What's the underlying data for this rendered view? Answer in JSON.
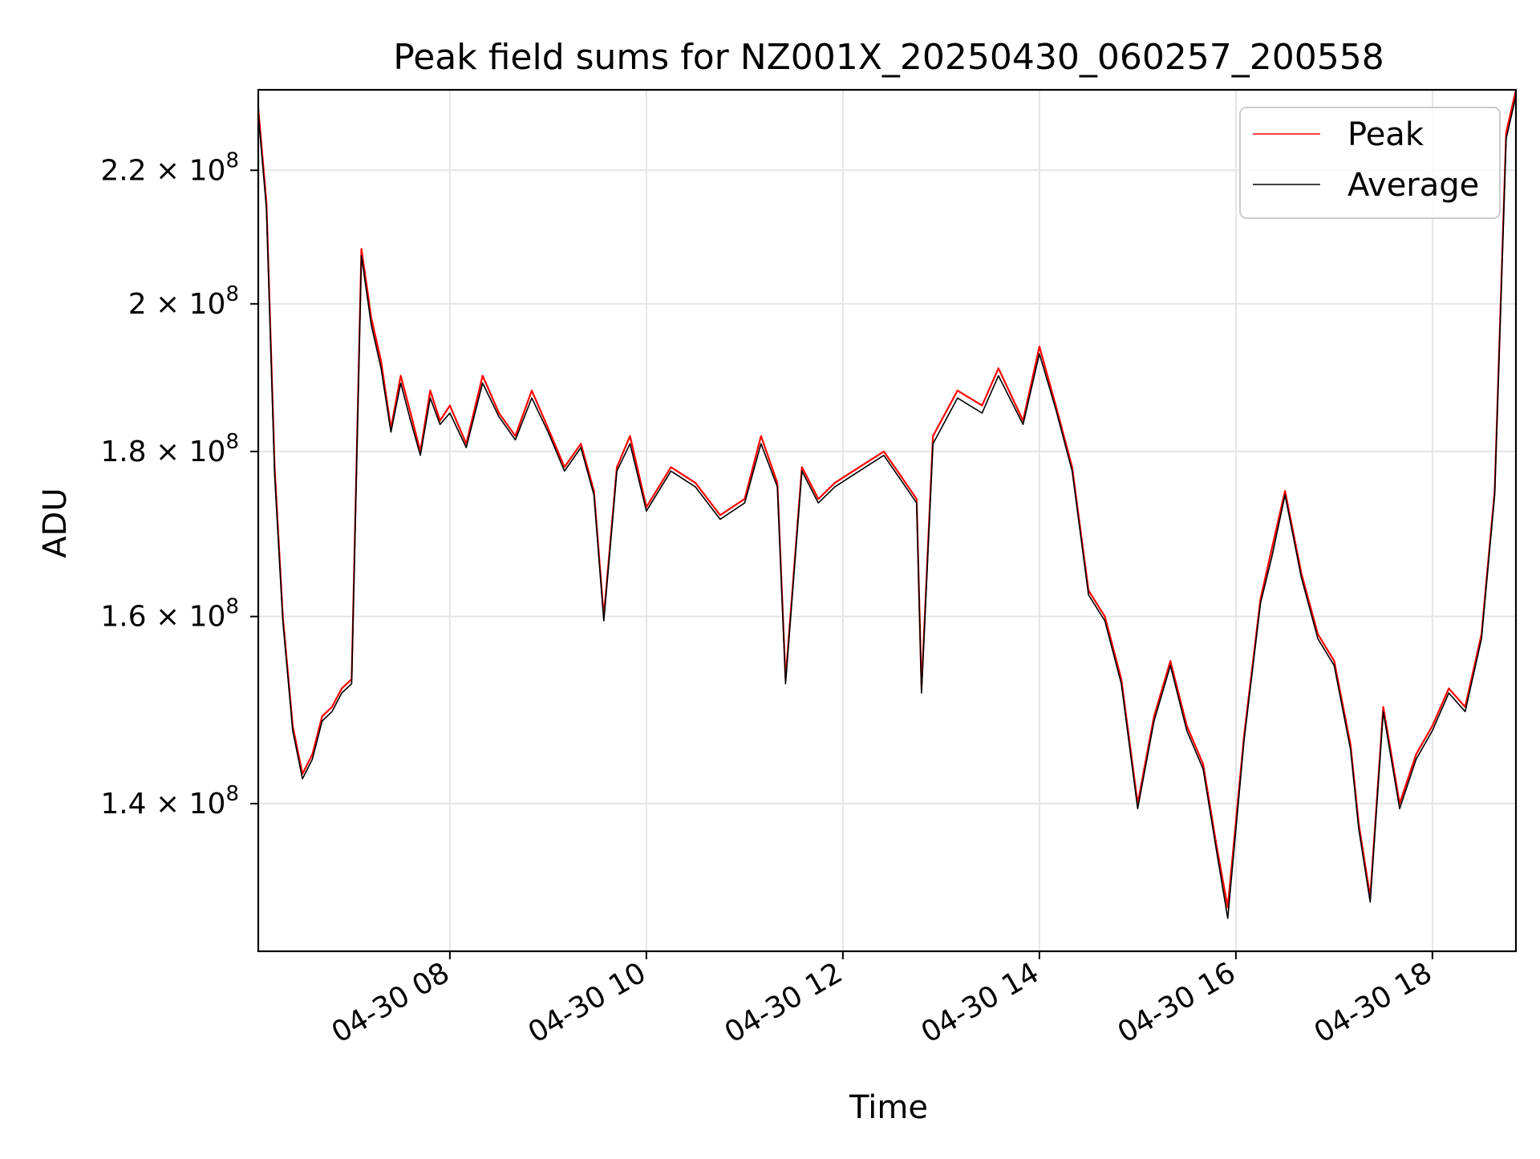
{
  "chart_data": {
    "type": "line",
    "title": "Peak field sums for NZ001X_20250430_060257_200558",
    "xlabel": "Time",
    "ylabel": "ADU",
    "y_scale": "log",
    "xlim": [
      "2025-04-30 06:03",
      "2025-04-30 18:51"
    ],
    "ylim": [
      126000000,
      233000000
    ],
    "x_ticks": [
      {
        "label": "04-30 08",
        "value": "2025-04-30 08:00"
      },
      {
        "label": "04-30 10",
        "value": "2025-04-30 10:00"
      },
      {
        "label": "04-30 12",
        "value": "2025-04-30 12:00"
      },
      {
        "label": "04-30 14",
        "value": "2025-04-30 14:00"
      },
      {
        "label": "04-30 16",
        "value": "2025-04-30 16:00"
      },
      {
        "label": "04-30 18",
        "value": "2025-04-30 18:00"
      }
    ],
    "y_ticks": [
      {
        "mantissa": "1.4",
        "exponent": "8",
        "value": 140000000
      },
      {
        "mantissa": "1.6",
        "exponent": "8",
        "value": 160000000
      },
      {
        "mantissa": "1.8",
        "exponent": "8",
        "value": 180000000
      },
      {
        "mantissa": "2",
        "exponent": "8",
        "value": 200000000
      },
      {
        "mantissa": "2.2",
        "exponent": "8",
        "value": 220000000
      }
    ],
    "grid": true,
    "legend_position": "upper-right",
    "series": [
      {
        "name": "Peak",
        "color": "#ff0000",
        "x": [
          "2025-04-30 06:03",
          "2025-04-30 06:08",
          "2025-04-30 06:13",
          "2025-04-30 06:18",
          "2025-04-30 06:24",
          "2025-04-30 06:30",
          "2025-04-30 06:36",
          "2025-04-30 06:42",
          "2025-04-30 06:48",
          "2025-04-30 06:54",
          "2025-04-30 07:00",
          "2025-04-30 07:06",
          "2025-04-30 07:12",
          "2025-04-30 07:18",
          "2025-04-30 07:24",
          "2025-04-30 07:30",
          "2025-04-30 07:36",
          "2025-04-30 07:42",
          "2025-04-30 07:48",
          "2025-04-30 07:54",
          "2025-04-30 08:00",
          "2025-04-30 08:10",
          "2025-04-30 08:20",
          "2025-04-30 08:30",
          "2025-04-30 08:40",
          "2025-04-30 08:50",
          "2025-04-30 09:00",
          "2025-04-30 09:10",
          "2025-04-30 09:20",
          "2025-04-30 09:28",
          "2025-04-30 09:34",
          "2025-04-30 09:42",
          "2025-04-30 09:50",
          "2025-04-30 10:00",
          "2025-04-30 10:15",
          "2025-04-30 10:30",
          "2025-04-30 10:45",
          "2025-04-30 11:00",
          "2025-04-30 11:10",
          "2025-04-30 11:20",
          "2025-04-30 11:25",
          "2025-04-30 11:35",
          "2025-04-30 11:45",
          "2025-04-30 11:55",
          "2025-04-30 12:10",
          "2025-04-30 12:25",
          "2025-04-30 12:35",
          "2025-04-30 12:45",
          "2025-04-30 12:48",
          "2025-04-30 12:55",
          "2025-04-30 13:10",
          "2025-04-30 13:25",
          "2025-04-30 13:35",
          "2025-04-30 13:50",
          "2025-04-30 14:00",
          "2025-04-30 14:10",
          "2025-04-30 14:20",
          "2025-04-30 14:30",
          "2025-04-30 14:40",
          "2025-04-30 14:50",
          "2025-04-30 15:00",
          "2025-04-30 15:10",
          "2025-04-30 15:20",
          "2025-04-30 15:30",
          "2025-04-30 15:40",
          "2025-04-30 15:48",
          "2025-04-30 15:55",
          "2025-04-30 16:05",
          "2025-04-30 16:15",
          "2025-04-30 16:22",
          "2025-04-30 16:30",
          "2025-04-30 16:40",
          "2025-04-30 16:50",
          "2025-04-30 17:00",
          "2025-04-30 17:10",
          "2025-04-30 17:15",
          "2025-04-30 17:22",
          "2025-04-30 17:30",
          "2025-04-30 17:40",
          "2025-04-30 17:50",
          "2025-04-30 18:00",
          "2025-04-30 18:10",
          "2025-04-30 18:20",
          "2025-04-30 18:30",
          "2025-04-30 18:38",
          "2025-04-30 18:45",
          "2025-04-30 18:51"
        ],
        "values": [
          230000000,
          215000000,
          178000000,
          160000000,
          148000000,
          143000000,
          145000000,
          149000000,
          150000000,
          152000000,
          153000000,
          208000000,
          198000000,
          192000000,
          183000000,
          190000000,
          185000000,
          180000000,
          188000000,
          184000000,
          186000000,
          181000000,
          190000000,
          185000000,
          182000000,
          188000000,
          183000000,
          178000000,
          181000000,
          175000000,
          160000000,
          178000000,
          182000000,
          173000000,
          178000000,
          176000000,
          172000000,
          174000000,
          182000000,
          176000000,
          153000000,
          178000000,
          174000000,
          176000000,
          178000000,
          180000000,
          177000000,
          174000000,
          152000000,
          182000000,
          188000000,
          186000000,
          191000000,
          184000000,
          194000000,
          186000000,
          178000000,
          163000000,
          160000000,
          153000000,
          140000000,
          149000000,
          155000000,
          148000000,
          144000000,
          136000000,
          130000000,
          147000000,
          162000000,
          168000000,
          175000000,
          165000000,
          158000000,
          155000000,
          146000000,
          138000000,
          131000000,
          150000000,
          140000000,
          145000000,
          148000000,
          152000000,
          150000000,
          158000000,
          175000000,
          226000000,
          233000000
        ]
      },
      {
        "name": "Average",
        "color": "#000000",
        "x": [
          "2025-04-30 06:03",
          "2025-04-30 06:08",
          "2025-04-30 06:13",
          "2025-04-30 06:18",
          "2025-04-30 06:24",
          "2025-04-30 06:30",
          "2025-04-30 06:36",
          "2025-04-30 06:42",
          "2025-04-30 06:48",
          "2025-04-30 06:54",
          "2025-04-30 07:00",
          "2025-04-30 07:06",
          "2025-04-30 07:12",
          "2025-04-30 07:18",
          "2025-04-30 07:24",
          "2025-04-30 07:30",
          "2025-04-30 07:36",
          "2025-04-30 07:42",
          "2025-04-30 07:48",
          "2025-04-30 07:54",
          "2025-04-30 08:00",
          "2025-04-30 08:10",
          "2025-04-30 08:20",
          "2025-04-30 08:30",
          "2025-04-30 08:40",
          "2025-04-30 08:50",
          "2025-04-30 09:00",
          "2025-04-30 09:10",
          "2025-04-30 09:20",
          "2025-04-30 09:28",
          "2025-04-30 09:34",
          "2025-04-30 09:42",
          "2025-04-30 09:50",
          "2025-04-30 10:00",
          "2025-04-30 10:15",
          "2025-04-30 10:30",
          "2025-04-30 10:45",
          "2025-04-30 11:00",
          "2025-04-30 11:10",
          "2025-04-30 11:20",
          "2025-04-30 11:25",
          "2025-04-30 11:35",
          "2025-04-30 11:45",
          "2025-04-30 11:55",
          "2025-04-30 12:10",
          "2025-04-30 12:25",
          "2025-04-30 12:35",
          "2025-04-30 12:45",
          "2025-04-30 12:48",
          "2025-04-30 12:55",
          "2025-04-30 13:10",
          "2025-04-30 13:25",
          "2025-04-30 13:35",
          "2025-04-30 13:50",
          "2025-04-30 14:00",
          "2025-04-30 14:10",
          "2025-04-30 14:20",
          "2025-04-30 14:30",
          "2025-04-30 14:40",
          "2025-04-30 14:50",
          "2025-04-30 15:00",
          "2025-04-30 15:10",
          "2025-04-30 15:20",
          "2025-04-30 15:30",
          "2025-04-30 15:40",
          "2025-04-30 15:48",
          "2025-04-30 15:55",
          "2025-04-30 16:05",
          "2025-04-30 16:15",
          "2025-04-30 16:22",
          "2025-04-30 16:30",
          "2025-04-30 16:40",
          "2025-04-30 16:50",
          "2025-04-30 17:00",
          "2025-04-30 17:10",
          "2025-04-30 17:15",
          "2025-04-30 17:22",
          "2025-04-30 17:30",
          "2025-04-30 17:40",
          "2025-04-30 17:50",
          "2025-04-30 18:00",
          "2025-04-30 18:10",
          "2025-04-30 18:20",
          "2025-04-30 18:30",
          "2025-04-30 18:38",
          "2025-04-30 18:45",
          "2025-04-30 18:51"
        ],
        "values": [
          229000000,
          214000000,
          177000000,
          159500000,
          147500000,
          142500000,
          144500000,
          148500000,
          149500000,
          151500000,
          152500000,
          207000000,
          197000000,
          191000000,
          182500000,
          189000000,
          184000000,
          179500000,
          187000000,
          183500000,
          185000000,
          180500000,
          189000000,
          184500000,
          181500000,
          187000000,
          182500000,
          177500000,
          180500000,
          174500000,
          159500000,
          177500000,
          181000000,
          172500000,
          177500000,
          175500000,
          171500000,
          173500000,
          181000000,
          175500000,
          152500000,
          177500000,
          173500000,
          175500000,
          177500000,
          179500000,
          176500000,
          173500000,
          151500000,
          181000000,
          187000000,
          185000000,
          190000000,
          183500000,
          193000000,
          185500000,
          177500000,
          162500000,
          159500000,
          152500000,
          139500000,
          148500000,
          154500000,
          147500000,
          143500000,
          135500000,
          129000000,
          146500000,
          161500000,
          167000000,
          174500000,
          164500000,
          157500000,
          154500000,
          145500000,
          137500000,
          130500000,
          149500000,
          139500000,
          144500000,
          147500000,
          151500000,
          149500000,
          157500000,
          174500000,
          225000000,
          232000000
        ]
      }
    ]
  }
}
